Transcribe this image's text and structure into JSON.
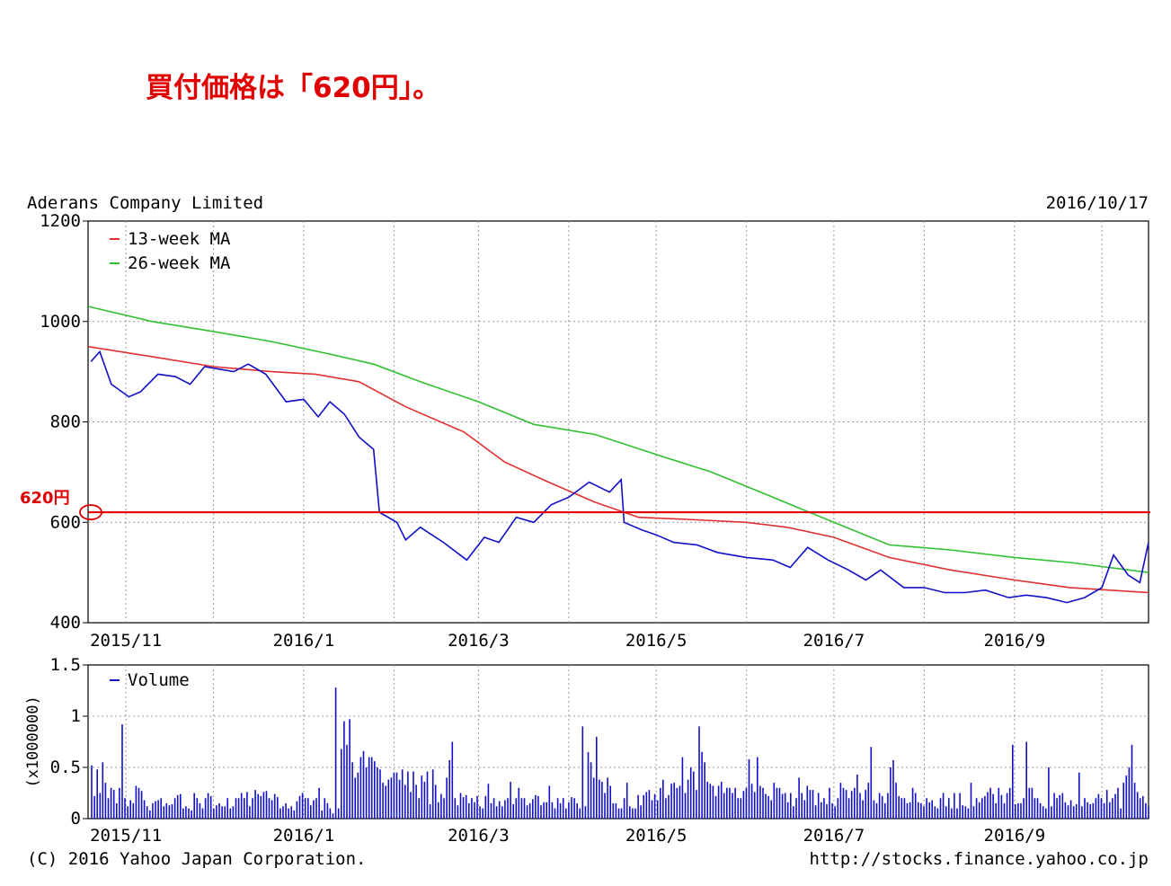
{
  "headline": "買付価格は「620円」。",
  "company": "Aderans Company Limited",
  "date": "2016/10/17",
  "copyright": "(C) 2016 Yahoo Japan Corporation.",
  "source_url": "http://stocks.finance.yahoo.co.jp",
  "annotation": {
    "label": "620円",
    "value": 620,
    "color": "#e00000"
  },
  "colors": {
    "price": "#1010c8",
    "ma13": "#e03030",
    "ma26": "#30c030",
    "volume": "#1010c8",
    "reference": "#e00000",
    "grid": "#999999"
  },
  "chart_data": [
    {
      "type": "line",
      "title": "Aderans Company Limited",
      "x_ticks": [
        "2015/11",
        "2016/1",
        "2016/3",
        "2016/5",
        "2016/7",
        "2016/9"
      ],
      "x_range": [
        "2015-10-19",
        "2016-10-17"
      ],
      "ylim": [
        400,
        1200
      ],
      "y_ticks": [
        400,
        600,
        800,
        1000,
        1200
      ],
      "grid": true,
      "legend_position": "top-left",
      "series": [
        {
          "name": "13-week MA",
          "color": "#e03030",
          "points": [
            [
              "2015-10-19",
              950
            ],
            [
              "2015-11-10",
              930
            ],
            [
              "2015-12-01",
              910
            ],
            [
              "2015-12-21",
              900
            ],
            [
              "2016-01-05",
              895
            ],
            [
              "2016-01-20",
              880
            ],
            [
              "2016-02-05",
              830
            ],
            [
              "2016-02-25",
              780
            ],
            [
              "2016-03-10",
              720
            ],
            [
              "2016-03-25",
              680
            ],
            [
              "2016-04-10",
              640
            ],
            [
              "2016-04-25",
              610
            ],
            [
              "2016-05-15",
              605
            ],
            [
              "2016-06-01",
              600
            ],
            [
              "2016-06-15",
              590
            ],
            [
              "2016-07-01",
              570
            ],
            [
              "2016-07-20",
              530
            ],
            [
              "2016-08-10",
              505
            ],
            [
              "2016-09-01",
              485
            ],
            [
              "2016-09-20",
              470
            ],
            [
              "2016-10-17",
              460
            ]
          ]
        },
        {
          "name": "26-week MA",
          "color": "#30c030",
          "points": [
            [
              "2015-10-19",
              1030
            ],
            [
              "2015-11-10",
              1000
            ],
            [
              "2015-12-01",
              980
            ],
            [
              "2015-12-21",
              960
            ],
            [
              "2016-01-10",
              935
            ],
            [
              "2016-01-25",
              915
            ],
            [
              "2016-02-10",
              880
            ],
            [
              "2016-03-01",
              840
            ],
            [
              "2016-03-20",
              795
            ],
            [
              "2016-04-10",
              775
            ],
            [
              "2016-05-01",
              735
            ],
            [
              "2016-05-20",
              700
            ],
            [
              "2016-06-10",
              650
            ],
            [
              "2016-07-01",
              600
            ],
            [
              "2016-07-20",
              555
            ],
            [
              "2016-08-10",
              545
            ],
            [
              "2016-09-01",
              530
            ],
            [
              "2016-09-20",
              520
            ],
            [
              "2016-10-17",
              500
            ]
          ]
        },
        {
          "name": "Price",
          "color": "#1010c8",
          "points": [
            [
              "2015-10-20",
              920
            ],
            [
              "2015-10-23",
              940
            ],
            [
              "2015-10-27",
              875
            ],
            [
              "2015-11-02",
              850
            ],
            [
              "2015-11-06",
              860
            ],
            [
              "2015-11-12",
              895
            ],
            [
              "2015-11-18",
              890
            ],
            [
              "2015-11-23",
              875
            ],
            [
              "2015-11-28",
              910
            ],
            [
              "2015-12-03",
              905
            ],
            [
              "2015-12-08",
              900
            ],
            [
              "2015-12-13",
              915
            ],
            [
              "2015-12-19",
              895
            ],
            [
              "2015-12-26",
              840
            ],
            [
              "2016-01-01",
              845
            ],
            [
              "2016-01-06",
              810
            ],
            [
              "2016-01-10",
              840
            ],
            [
              "2016-01-15",
              815
            ],
            [
              "2016-01-20",
              770
            ],
            [
              "2016-01-25",
              745
            ],
            [
              "2016-01-27",
              620
            ],
            [
              "2016-02-02",
              600
            ],
            [
              "2016-02-05",
              565
            ],
            [
              "2016-02-10",
              590
            ],
            [
              "2016-02-18",
              560
            ],
            [
              "2016-02-26",
              525
            ],
            [
              "2016-03-03",
              570
            ],
            [
              "2016-03-08",
              560
            ],
            [
              "2016-03-14",
              610
            ],
            [
              "2016-03-20",
              600
            ],
            [
              "2016-03-26",
              635
            ],
            [
              "2016-04-01",
              650
            ],
            [
              "2016-04-08",
              680
            ],
            [
              "2016-04-15",
              660
            ],
            [
              "2016-04-19",
              685
            ],
            [
              "2016-04-20",
              600
            ],
            [
              "2016-04-26",
              585
            ],
            [
              "2016-05-01",
              575
            ],
            [
              "2016-05-07",
              560
            ],
            [
              "2016-05-15",
              555
            ],
            [
              "2016-05-22",
              540
            ],
            [
              "2016-06-01",
              530
            ],
            [
              "2016-06-10",
              525
            ],
            [
              "2016-06-16",
              510
            ],
            [
              "2016-06-22",
              550
            ],
            [
              "2016-06-29",
              525
            ],
            [
              "2016-07-06",
              505
            ],
            [
              "2016-07-12",
              485
            ],
            [
              "2016-07-17",
              505
            ],
            [
              "2016-07-25",
              470
            ],
            [
              "2016-08-01",
              470
            ],
            [
              "2016-08-08",
              460
            ],
            [
              "2016-08-15",
              460
            ],
            [
              "2016-08-22",
              465
            ],
            [
              "2016-08-30",
              450
            ],
            [
              "2016-09-05",
              455
            ],
            [
              "2016-09-12",
              450
            ],
            [
              "2016-09-19",
              440
            ],
            [
              "2016-09-25",
              450
            ],
            [
              "2016-10-01",
              470
            ],
            [
              "2016-10-05",
              535
            ],
            [
              "2016-10-10",
              495
            ],
            [
              "2016-10-14",
              480
            ],
            [
              "2016-10-17",
              560
            ]
          ]
        }
      ]
    },
    {
      "type": "bar",
      "x_ticks": [
        "2015/11",
        "2016/1",
        "2016/3",
        "2016/5",
        "2016/7",
        "2016/9"
      ],
      "x_range": [
        "2015-10-19",
        "2016-10-17"
      ],
      "ylim": [
        0,
        1.5
      ],
      "y_ticks": [
        "0",
        "0.5",
        "1",
        "1.5"
      ],
      "ylabel": "(x1000000)",
      "grid": true,
      "legend_position": "top-left",
      "series": [
        {
          "name": "Volume",
          "color": "#1010c8",
          "values": [
            0.52,
            0.22,
            0.48,
            0.25,
            0.55,
            0.35,
            0.2,
            0.3,
            0.28,
            0.15,
            0.3,
            0.92,
            0.2,
            0.12,
            0.18,
            0.15,
            0.32,
            0.3,
            0.27,
            0.18,
            0.12,
            0.08,
            0.15,
            0.17,
            0.18,
            0.2,
            0.12,
            0.15,
            0.13,
            0.14,
            0.2,
            0.23,
            0.24,
            0.1,
            0.12,
            0.1,
            0.08,
            0.25,
            0.2,
            0.15,
            0.1,
            0.2,
            0.25,
            0.22,
            0.1,
            0.13,
            0.15,
            0.12,
            0.12,
            0.2,
            0.1,
            0.12,
            0.2,
            0.2,
            0.25,
            0.2,
            0.26,
            0.12,
            0.2,
            0.28,
            0.24,
            0.22,
            0.26,
            0.27,
            0.2,
            0.18,
            0.24,
            0.21,
            0.1,
            0.12,
            0.15,
            0.1,
            0.12,
            0.08,
            0.17,
            0.22,
            0.25,
            0.2,
            0.2,
            0.13,
            0.18,
            0.2,
            0.3,
            0.08,
            0.2,
            0.15,
            0.1,
            0.05,
            1.28,
            0.1,
            0.68,
            0.95,
            0.72,
            0.97,
            0.55,
            0.4,
            0.45,
            0.6,
            0.66,
            0.5,
            0.6,
            0.6,
            0.56,
            0.5,
            0.48,
            0.35,
            0.32,
            0.38,
            0.4,
            0.45,
            0.45,
            0.38,
            0.48,
            0.33,
            0.46,
            0.26,
            0.46,
            0.33,
            0.2,
            0.42,
            0.36,
            0.46,
            0.14,
            0.48,
            0.33,
            0.16,
            0.24,
            0.2,
            0.4,
            0.57,
            0.75,
            0.2,
            0.13,
            0.25,
            0.21,
            0.23,
            0.15,
            0.2,
            0.16,
            0.22,
            0.12,
            0.1,
            0.22,
            0.34,
            0.15,
            0.2,
            0.12,
            0.17,
            0.12,
            0.18,
            0.2,
            0.36,
            0.14,
            0.2,
            0.3,
            0.2,
            0.2,
            0.13,
            0.15,
            0.19,
            0.23,
            0.22,
            0.13,
            0.16,
            0.16,
            0.32,
            0.16,
            0.1,
            0.2,
            0.15,
            0.2,
            0.1,
            0.16,
            0.21,
            0.2,
            0.15,
            0.1,
            0.9,
            0.12,
            0.65,
            0.55,
            0.4,
            0.8,
            0.38,
            0.36,
            0.25,
            0.4,
            0.32,
            0.15,
            0.15,
            0.1,
            0.1,
            0.2,
            0.35,
            0.12,
            0.1,
            0.1,
            0.23,
            0.13,
            0.23,
            0.26,
            0.28,
            0.18,
            0.24,
            0.18,
            0.3,
            0.38,
            0.2,
            0.23,
            0.34,
            0.35,
            0.3,
            0.32,
            0.6,
            0.25,
            0.38,
            0.5,
            0.46,
            0.28,
            0.9,
            0.65,
            0.55,
            0.36,
            0.34,
            0.32,
            0.22,
            0.32,
            0.36,
            0.25,
            0.3,
            0.3,
            0.25,
            0.3,
            0.2,
            0.2,
            0.27,
            0.3,
            0.58,
            0.34,
            0.26,
            0.6,
            0.32,
            0.3,
            0.24,
            0.22,
            0.18,
            0.35,
            0.3,
            0.3,
            0.24,
            0.25,
            0.16,
            0.25,
            0.12,
            0.2,
            0.4,
            0.25,
            0.18,
            0.32,
            0.28,
            0.28,
            0.13,
            0.25,
            0.16,
            0.2,
            0.14,
            0.3,
            0.15,
            0.12,
            0.2,
            0.35,
            0.3,
            0.28,
            0.2,
            0.27,
            0.3,
            0.43,
            0.25,
            0.18,
            0.28,
            0.35,
            0.7,
            0.18,
            0.15,
            0.25,
            0.22,
            0.15,
            0.25,
            0.5,
            0.57,
            0.35,
            0.22,
            0.2,
            0.2,
            0.15,
            0.16,
            0.3,
            0.25,
            0.16,
            0.15,
            0.12,
            0.2,
            0.16,
            0.18,
            0.12,
            0.1,
            0.2,
            0.25,
            0.12,
            0.2,
            0.1,
            0.25,
            0.1,
            0.25,
            0.13,
            0.12,
            0.1,
            0.35,
            0.12,
            0.2,
            0.16,
            0.2,
            0.22,
            0.26,
            0.3,
            0.24,
            0.15,
            0.3,
            0.23,
            0.15,
            0.25,
            0.3,
            0.72,
            0.14,
            0.15,
            0.15,
            0.2,
            0.75,
            0.3,
            0.3,
            0.2,
            0.2,
            0.15,
            0.12,
            0.1,
            0.5,
            0.12,
            0.25,
            0.2,
            0.23,
            0.25,
            0.16,
            0.13,
            0.18,
            0.12,
            0.14,
            0.45,
            0.12,
            0.2,
            0.16,
            0.14,
            0.15,
            0.2,
            0.24,
            0.2,
            0.15,
            0.28,
            0.16,
            0.2,
            0.24,
            0.3,
            0.1,
            0.35,
            0.42,
            0.5,
            0.72,
            0.35,
            0.26,
            0.2,
            0.22,
            0.15,
            0.12
          ]
        }
      ]
    }
  ]
}
